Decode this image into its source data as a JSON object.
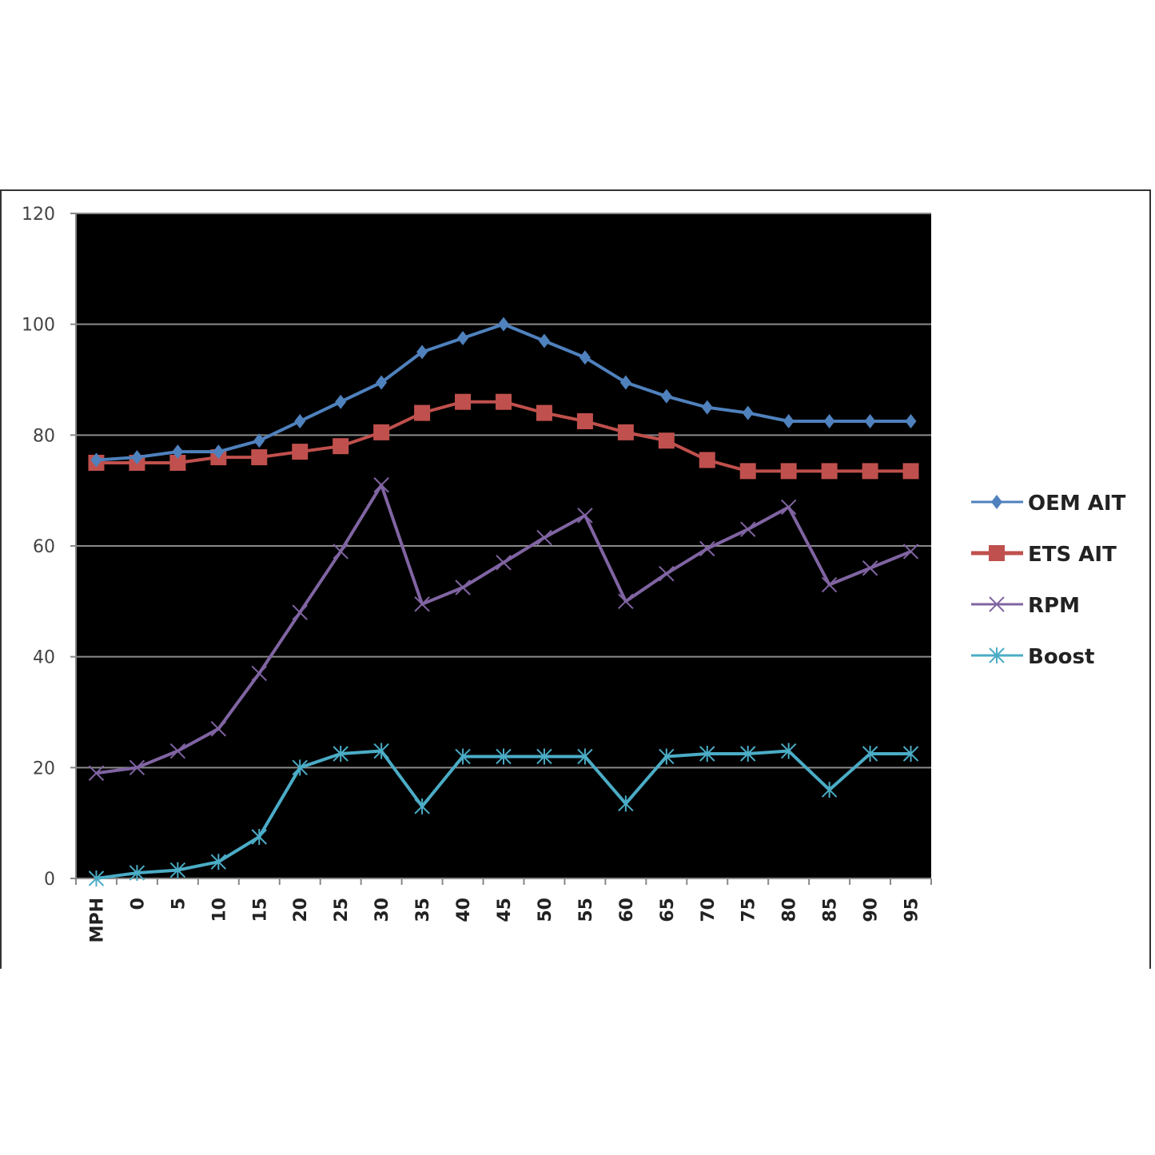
{
  "chart_data": {
    "type": "line",
    "title": "",
    "xlabel": "",
    "ylabel": "",
    "categories": [
      "MPH",
      "0",
      "5",
      "10",
      "15",
      "20",
      "25",
      "30",
      "35",
      "40",
      "45",
      "50",
      "55",
      "60",
      "65",
      "70",
      "75",
      "80",
      "85",
      "90",
      "95"
    ],
    "ylim": [
      0,
      120
    ],
    "yticks": [
      0,
      20,
      40,
      60,
      80,
      100,
      120
    ],
    "grid": true,
    "legend_position": "right",
    "plot_background": "#000000",
    "series": [
      {
        "name": "OEM AIT",
        "color": "#4f81bd",
        "marker": "diamond",
        "values": [
          75.5,
          76,
          77,
          77,
          79,
          82.5,
          86,
          89.5,
          95,
          97.5,
          100,
          97,
          94,
          89.5,
          87,
          85,
          84,
          82.5,
          82.5,
          82.5,
          82.5
        ]
      },
      {
        "name": "ETS AIT",
        "color": "#c0504d",
        "marker": "square",
        "values": [
          75,
          75,
          75,
          76,
          76,
          77,
          78,
          80.5,
          84,
          86,
          86,
          84,
          82.5,
          80.5,
          79,
          75.5,
          73.5,
          73.5,
          73.5,
          73.5,
          73.5
        ]
      },
      {
        "name": "RPM",
        "color": "#8064a2",
        "marker": "x",
        "values": [
          19,
          20,
          23,
          27,
          37,
          48,
          59,
          71,
          49.5,
          52.5,
          57,
          61.5,
          65.5,
          50,
          55,
          59.5,
          63,
          67,
          53,
          56,
          59
        ]
      },
      {
        "name": "Boost",
        "color": "#4bacc6",
        "marker": "star",
        "values": [
          0,
          1,
          1.5,
          3,
          7.5,
          20,
          22.5,
          23,
          13,
          22,
          22,
          22,
          22,
          13.5,
          22,
          22.5,
          22.5,
          23,
          16,
          22.5,
          22.5
        ]
      }
    ]
  }
}
